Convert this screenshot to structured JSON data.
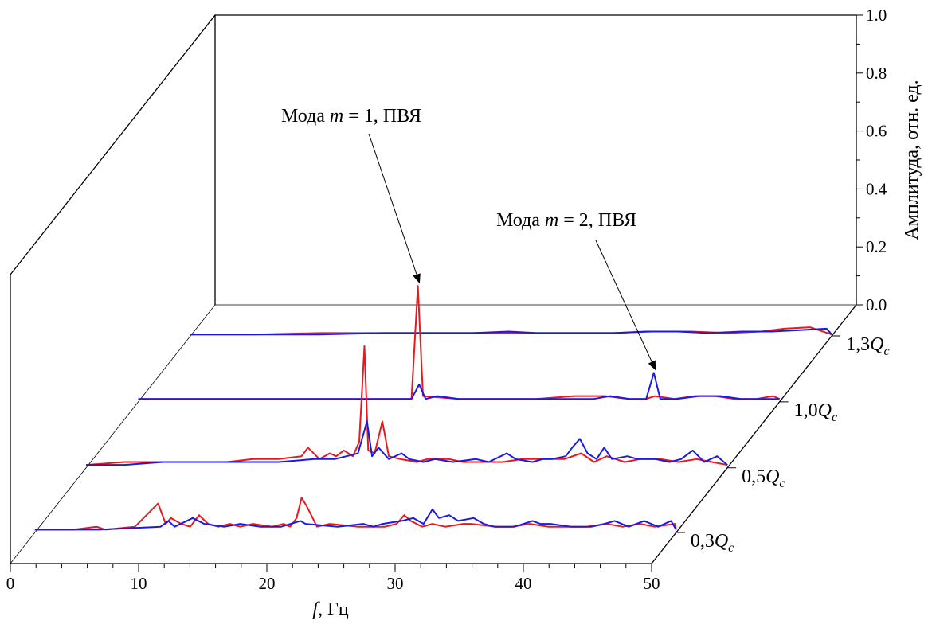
{
  "chart_data": {
    "type": "line",
    "subtype": "3d-waterfall",
    "title": "",
    "xlabel": "f, Гц",
    "xlabel_italic_part": "f",
    "xlabel_rest": ", Гц",
    "xlim": [
      0,
      50
    ],
    "xticks": [
      0,
      10,
      20,
      30,
      40,
      50
    ],
    "xtick_labels": [
      "0",
      "10",
      "20",
      "30",
      "40",
      "50"
    ],
    "zlabel": "Амплитуда, отн. ед.",
    "zlim": [
      0,
      1.0
    ],
    "zticks": [
      0.0,
      0.2,
      0.4,
      0.6,
      0.8,
      1.0
    ],
    "ztick_labels": [
      "0.0",
      "0.2",
      "0.4",
      "0.6",
      "0.8",
      "1.0"
    ],
    "depth_axis_labels": [
      {
        "prefix": "0,3",
        "var": "Q",
        "sub": "c",
        "text": "0,3Qc"
      },
      {
        "prefix": "0,5",
        "var": "Q",
        "sub": "c",
        "text": "0,5Qc"
      },
      {
        "prefix": "1,0",
        "var": "Q",
        "sub": "c",
        "text": "1,0Qc"
      },
      {
        "prefix": "1,3",
        "var": "Q",
        "sub": "c",
        "text": "1,3Qc"
      }
    ],
    "series_colors": {
      "red": "#e8191c",
      "blue": "#1a1ae6"
    },
    "series": [
      {
        "name": "0,3Qc",
        "red": [
          [
            0,
            0.01
          ],
          [
            3,
            0.01
          ],
          [
            4.8,
            0.02
          ],
          [
            5.5,
            0.01
          ],
          [
            7.8,
            0.02
          ],
          [
            9.6,
            0.1
          ],
          [
            10.2,
            0.03
          ],
          [
            10.6,
            0.05
          ],
          [
            11.4,
            0.03
          ],
          [
            12.1,
            0.02
          ],
          [
            12.8,
            0.06
          ],
          [
            13.5,
            0.03
          ],
          [
            14.3,
            0.02
          ],
          [
            15.2,
            0.03
          ],
          [
            16,
            0.02
          ],
          [
            17,
            0.03
          ],
          [
            18.5,
            0.02
          ],
          [
            19.4,
            0.03
          ],
          [
            19.9,
            0.02
          ],
          [
            20.4,
            0.05
          ],
          [
            20.8,
            0.12
          ],
          [
            21.2,
            0.09
          ],
          [
            22,
            0.02
          ],
          [
            23,
            0.03
          ],
          [
            25.2,
            0.02
          ],
          [
            26.5,
            0.02
          ],
          [
            27.3,
            0.02
          ],
          [
            28.2,
            0.03
          ],
          [
            28.8,
            0.06
          ],
          [
            29.3,
            0.04
          ],
          [
            30.2,
            0.02
          ],
          [
            31,
            0.03
          ],
          [
            32,
            0.02
          ],
          [
            33.4,
            0.03
          ],
          [
            34,
            0.03
          ],
          [
            36,
            0.02
          ],
          [
            37.2,
            0.02
          ],
          [
            38.6,
            0.03
          ],
          [
            40,
            0.02
          ],
          [
            41.5,
            0.02
          ],
          [
            43,
            0.02
          ],
          [
            44.6,
            0.03
          ],
          [
            45.8,
            0.02
          ],
          [
            47.2,
            0.03
          ],
          [
            48.3,
            0.02
          ],
          [
            49.9,
            0.03
          ],
          [
            50,
            0.01
          ]
        ],
        "blue": [
          [
            0,
            0.01
          ],
          [
            2,
            0.01
          ],
          [
            5,
            0.01
          ],
          [
            9.8,
            0.02
          ],
          [
            10.4,
            0.04
          ],
          [
            10.9,
            0.02
          ],
          [
            12.3,
            0.05
          ],
          [
            13.2,
            0.03
          ],
          [
            14.8,
            0.02
          ],
          [
            16,
            0.03
          ],
          [
            17.6,
            0.02
          ],
          [
            19.2,
            0.02
          ],
          [
            20.7,
            0.04
          ],
          [
            21.1,
            0.03
          ],
          [
            23.6,
            0.02
          ],
          [
            25.6,
            0.03
          ],
          [
            26.4,
            0.02
          ],
          [
            27.1,
            0.03
          ],
          [
            28.6,
            0.04
          ],
          [
            29.5,
            0.05
          ],
          [
            30.3,
            0.03
          ],
          [
            31,
            0.08
          ],
          [
            31.5,
            0.05
          ],
          [
            32.3,
            0.06
          ],
          [
            33,
            0.04
          ],
          [
            34.2,
            0.05
          ],
          [
            35,
            0.03
          ],
          [
            35.8,
            0.02
          ],
          [
            37.4,
            0.02
          ],
          [
            38.8,
            0.04
          ],
          [
            39.4,
            0.03
          ],
          [
            40.2,
            0.03
          ],
          [
            41.8,
            0.02
          ],
          [
            43.4,
            0.02
          ],
          [
            44.4,
            0.03
          ],
          [
            45.2,
            0.04
          ],
          [
            46.3,
            0.02
          ],
          [
            47.5,
            0.04
          ],
          [
            48.6,
            0.02
          ],
          [
            49.6,
            0.04
          ],
          [
            50,
            0.01
          ]
        ]
      },
      {
        "name": "0,5Qc",
        "red": [
          [
            0,
            0.01
          ],
          [
            3,
            0.02
          ],
          [
            6,
            0.02
          ],
          [
            9,
            0.02
          ],
          [
            11,
            0.02
          ],
          [
            13,
            0.03
          ],
          [
            15,
            0.03
          ],
          [
            16.8,
            0.04
          ],
          [
            17.3,
            0.07
          ],
          [
            18.2,
            0.03
          ],
          [
            19,
            0.05
          ],
          [
            19.5,
            0.04
          ],
          [
            20.1,
            0.06
          ],
          [
            20.8,
            0.04
          ],
          [
            21.3,
            0.09
          ],
          [
            21.7,
            0.42
          ],
          [
            22,
            0.06
          ],
          [
            22.5,
            0.05
          ],
          [
            23.1,
            0.16
          ],
          [
            23.6,
            0.04
          ],
          [
            24.5,
            0.03
          ],
          [
            25.8,
            0.02
          ],
          [
            26.6,
            0.03
          ],
          [
            28.3,
            0.03
          ],
          [
            29.4,
            0.02
          ],
          [
            31,
            0.02
          ],
          [
            32.5,
            0.02
          ],
          [
            34,
            0.03
          ],
          [
            35.5,
            0.03
          ],
          [
            37.3,
            0.03
          ],
          [
            38.6,
            0.05
          ],
          [
            39.6,
            0.02
          ],
          [
            40.6,
            0.04
          ],
          [
            42,
            0.02
          ],
          [
            43.2,
            0.03
          ],
          [
            44.8,
            0.03
          ],
          [
            46.2,
            0.02
          ],
          [
            47.6,
            0.03
          ],
          [
            48.8,
            0.02
          ],
          [
            50,
            0.01
          ]
        ],
        "blue": [
          [
            0,
            0.01
          ],
          [
            3,
            0.01
          ],
          [
            6,
            0.02
          ],
          [
            9,
            0.02
          ],
          [
            12,
            0.02
          ],
          [
            15,
            0.02
          ],
          [
            17.8,
            0.03
          ],
          [
            19.4,
            0.03
          ],
          [
            20.3,
            0.04
          ],
          [
            21.2,
            0.05
          ],
          [
            21.9,
            0.16
          ],
          [
            22.3,
            0.04
          ],
          [
            22.8,
            0.07
          ],
          [
            23.6,
            0.03
          ],
          [
            24.6,
            0.05
          ],
          [
            25.2,
            0.03
          ],
          [
            26.3,
            0.02
          ],
          [
            27.2,
            0.03
          ],
          [
            28.6,
            0.02
          ],
          [
            30.4,
            0.03
          ],
          [
            31.4,
            0.02
          ],
          [
            32.8,
            0.05
          ],
          [
            33.5,
            0.03
          ],
          [
            34.8,
            0.02
          ],
          [
            35.6,
            0.03
          ],
          [
            36.3,
            0.03
          ],
          [
            37.4,
            0.04
          ],
          [
            37.9,
            0.07
          ],
          [
            38.5,
            0.1
          ],
          [
            39.1,
            0.05
          ],
          [
            39.8,
            0.03
          ],
          [
            40.4,
            0.07
          ],
          [
            41,
            0.03
          ],
          [
            42.2,
            0.04
          ],
          [
            43,
            0.03
          ],
          [
            44.4,
            0.03
          ],
          [
            45.5,
            0.02
          ],
          [
            46.4,
            0.03
          ],
          [
            47.3,
            0.06
          ],
          [
            48.2,
            0.02
          ],
          [
            49.2,
            0.04
          ],
          [
            50,
            0.01
          ]
        ]
      },
      {
        "name": "1,0Qc",
        "red": [
          [
            0,
            0.01
          ],
          [
            5,
            0.01
          ],
          [
            10,
            0.01
          ],
          [
            16,
            0.01
          ],
          [
            20,
            0.01
          ],
          [
            21.3,
            0.01
          ],
          [
            21.8,
            0.4
          ],
          [
            22.2,
            0.02
          ],
          [
            25,
            0.01
          ],
          [
            28,
            0.01
          ],
          [
            31,
            0.01
          ],
          [
            34,
            0.02
          ],
          [
            36.4,
            0.02
          ],
          [
            38.2,
            0.01
          ],
          [
            39.6,
            0.01
          ],
          [
            40.3,
            0.02
          ],
          [
            41.8,
            0.01
          ],
          [
            43.4,
            0.02
          ],
          [
            45,
            0.02
          ],
          [
            46.5,
            0.01
          ],
          [
            48.2,
            0.01
          ],
          [
            49.5,
            0.02
          ],
          [
            50,
            0.01
          ]
        ],
        "blue": [
          [
            0,
            0.01
          ],
          [
            5,
            0.01
          ],
          [
            10,
            0.01
          ],
          [
            15,
            0.01
          ],
          [
            20,
            0.01
          ],
          [
            21.3,
            0.01
          ],
          [
            21.9,
            0.06
          ],
          [
            22.4,
            0.01
          ],
          [
            23.3,
            0.02
          ],
          [
            25,
            0.01
          ],
          [
            28,
            0.01
          ],
          [
            31,
            0.01
          ],
          [
            33.2,
            0.01
          ],
          [
            35.5,
            0.01
          ],
          [
            36.8,
            0.02
          ],
          [
            38.3,
            0.01
          ],
          [
            39.6,
            0.01
          ],
          [
            40.2,
            0.1
          ],
          [
            40.7,
            0.01
          ],
          [
            42,
            0.01
          ],
          [
            43.7,
            0.02
          ],
          [
            45.4,
            0.02
          ],
          [
            47,
            0.01
          ],
          [
            48.6,
            0.01
          ],
          [
            49.8,
            0.01
          ],
          [
            50,
            0.01
          ]
        ]
      },
      {
        "name": "1,3Qc",
        "red": [
          [
            0,
            0.005
          ],
          [
            5,
            0.005
          ],
          [
            10,
            0.01
          ],
          [
            15,
            0.01
          ],
          [
            20,
            0.01
          ],
          [
            24,
            0.01
          ],
          [
            27,
            0.01
          ],
          [
            30,
            0.01
          ],
          [
            33,
            0.01
          ],
          [
            36,
            0.015
          ],
          [
            39,
            0.015
          ],
          [
            42,
            0.01
          ],
          [
            44.5,
            0.015
          ],
          [
            46.3,
            0.025
          ],
          [
            48.3,
            0.03
          ],
          [
            50,
            0.005
          ]
        ],
        "blue": [
          [
            0,
            0.005
          ],
          [
            5,
            0.005
          ],
          [
            10,
            0.005
          ],
          [
            15,
            0.01
          ],
          [
            18,
            0.01
          ],
          [
            22,
            0.01
          ],
          [
            24.8,
            0.015
          ],
          [
            27,
            0.01
          ],
          [
            30,
            0.01
          ],
          [
            33,
            0.01
          ],
          [
            35.5,
            0.015
          ],
          [
            38,
            0.015
          ],
          [
            40.4,
            0.01
          ],
          [
            43,
            0.015
          ],
          [
            45.3,
            0.015
          ],
          [
            47.5,
            0.02
          ],
          [
            49.6,
            0.025
          ],
          [
            50,
            0.005
          ]
        ]
      }
    ],
    "annotations": [
      {
        "prefix": "Мода ",
        "var": "m",
        "rest": " = 1, ПВЯ",
        "text": "Мода m = 1, ПВЯ",
        "series": "1,0Qc",
        "x": 21.8,
        "z": 0.4
      },
      {
        "prefix": "Мода ",
        "var": "m",
        "rest": " = 2, ПВЯ",
        "text": "Мода m = 2, ПВЯ",
        "series": "1,0Qc",
        "x": 40.2,
        "z": 0.1
      }
    ]
  }
}
